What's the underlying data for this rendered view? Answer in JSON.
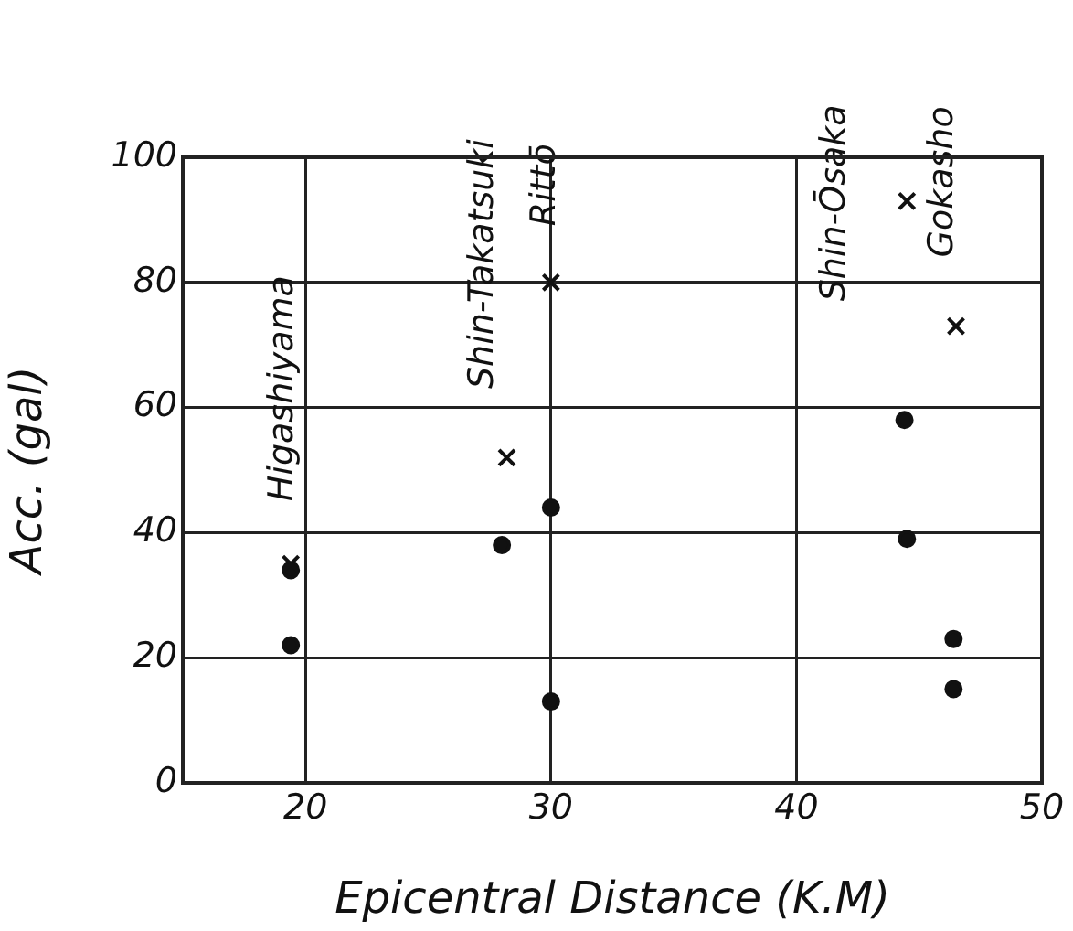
{
  "chart_data": {
    "type": "scatter",
    "xlabel": "Epicentral Distance (K.M)",
    "ylabel": "Acc. (gal)",
    "xlim": [
      15,
      50
    ],
    "xticks": [
      20,
      30,
      40,
      50
    ],
    "ylim": [
      0,
      100
    ],
    "yticks": [
      0,
      20,
      40,
      60,
      80,
      100
    ],
    "grid": true,
    "series": [
      {
        "color": "#111111",
        "marker": "cross",
        "x": [
          19.4,
          28.2,
          30,
          44.5,
          46.5
        ],
        "values": [
          35,
          52,
          80,
          93,
          73
        ]
      },
      {
        "color": "#111111",
        "marker": "circle",
        "x": [
          19.4,
          19.4,
          28,
          30,
          30,
          44.4,
          44.5,
          46.4,
          46.4
        ],
        "values": [
          34,
          22,
          38,
          44,
          13,
          58,
          39,
          23,
          15
        ]
      }
    ],
    "annotations": [
      "Higashiyama",
      "Shin-Takatsuki",
      "Rittō",
      "Shin-Ōsaka",
      "Gokasho"
    ]
  }
}
